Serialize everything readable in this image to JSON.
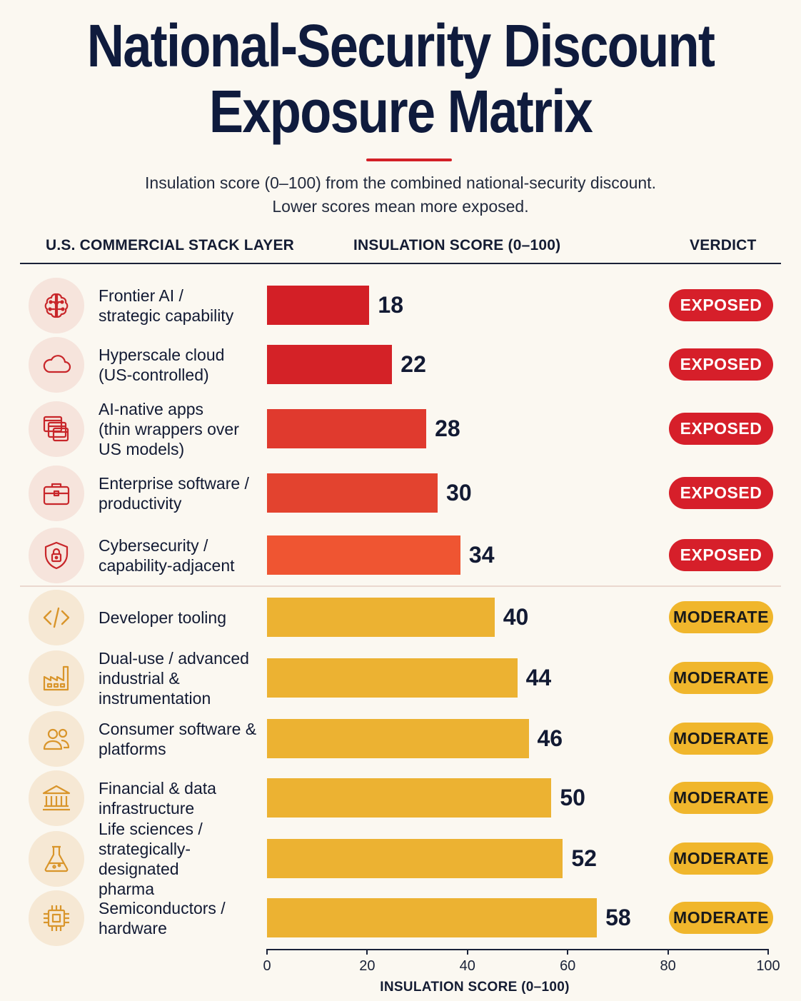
{
  "title_line1": "National-Security Discount",
  "title_line2": "Exposure Matrix",
  "subtitle_line1": "Insulation score (0–100) from the combined national-security discount.",
  "subtitle_line2": "Lower scores mean more exposed.",
  "headers": {
    "layer": "U.S. COMMERCIAL STACK LAYER",
    "score": "INSULATION SCORE (0–100)",
    "verdict": "VERDICT"
  },
  "colors": {
    "exposed_badge": "#d61f2a",
    "moderate_badge": "#f0b62c"
  },
  "chart_data": {
    "type": "bar",
    "orientation": "horizontal",
    "xlabel": "INSULATION SCORE (0–100)",
    "xlim": [
      0,
      100
    ],
    "xticks": [
      0,
      20,
      40,
      60,
      80,
      100
    ],
    "grid": false,
    "rows": [
      {
        "label": [
          "Frontier AI /",
          "strategic capability"
        ],
        "value": 18,
        "verdict": "EXPOSED",
        "icon": "brain-icon",
        "color": "#d31f26"
      },
      {
        "label": [
          "Hyperscale cloud",
          "(US-controlled)"
        ],
        "value": 22,
        "verdict": "EXPOSED",
        "icon": "cloud-icon",
        "color": "#d42227"
      },
      {
        "label": [
          "AI-native apps",
          "(thin wrappers over",
          "US models)"
        ],
        "value": 28,
        "verdict": "EXPOSED",
        "icon": "app-windows-icon",
        "color": "#e03a2e"
      },
      {
        "label": [
          "Enterprise software /",
          "productivity"
        ],
        "value": 30,
        "verdict": "EXPOSED",
        "icon": "briefcase-icon",
        "color": "#e3432f"
      },
      {
        "label": [
          "Cybersecurity /",
          "capability-adjacent"
        ],
        "value": 34,
        "verdict": "EXPOSED",
        "icon": "shield-lock-icon",
        "color": "#ef5532"
      },
      {
        "label": [
          "Developer tooling"
        ],
        "value": 40,
        "verdict": "MODERATE",
        "icon": "code-icon",
        "color": "#ecb232"
      },
      {
        "label": [
          "Dual-use / advanced",
          "industrial &",
          "instrumentation"
        ],
        "value": 44,
        "verdict": "MODERATE",
        "icon": "factory-icon",
        "color": "#ecb232"
      },
      {
        "label": [
          "Consumer software &",
          "platforms"
        ],
        "value": 46,
        "verdict": "MODERATE",
        "icon": "users-icon",
        "color": "#ecb232"
      },
      {
        "label": [
          "Financial & data",
          "infrastructure"
        ],
        "value": 50,
        "verdict": "MODERATE",
        "icon": "bank-icon",
        "color": "#ecb232"
      },
      {
        "label": [
          "Life sciences /",
          "strategically-designated",
          "pharma"
        ],
        "value": 52,
        "verdict": "MODERATE",
        "icon": "flask-icon",
        "color": "#ecb232"
      },
      {
        "label": [
          "Semiconductors /",
          "hardware"
        ],
        "value": 58,
        "verdict": "MODERATE",
        "icon": "chip-icon",
        "color": "#ecb232"
      }
    ]
  }
}
